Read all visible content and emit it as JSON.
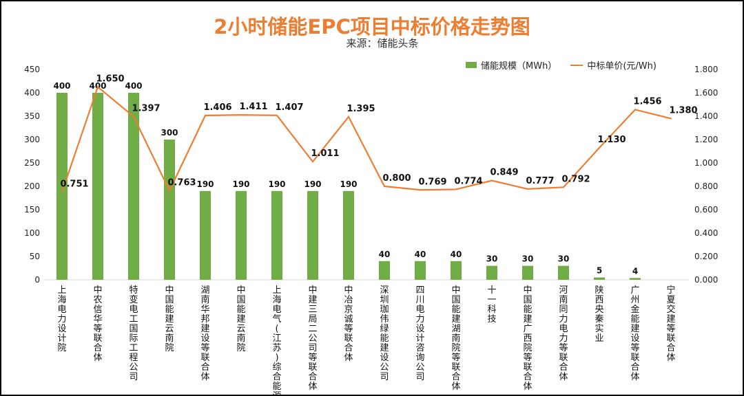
{
  "chart_data": {
    "type": "bar+line",
    "title": "2小时储能EPC项目中标价格走势图",
    "subtitle": "来源：储能头条",
    "categories": [
      "上海电力设计院",
      "中农信华等联合体",
      "特变电工国际工程公司",
      "中国能建云南院",
      "湖南华邦建设等联合体",
      "中国能建云南院",
      "上海电气(江苏)综合能源",
      "中建三局二公司等联合体",
      "中冶京诚等联合体",
      "深圳珈伟绿能建设公司",
      "四川电力设计咨询公司",
      "中国能建湖南院等联合体",
      "十一科技",
      "中国能建广西院等联合体",
      "河南同力电力等联合体",
      "陕西央秦实业",
      "广州金能建设等联合体",
      "宁夏交建等联合体"
    ],
    "series": [
      {
        "name": "储能规模（MWh）",
        "type": "bar",
        "axis": "left",
        "color": "#70AD47",
        "values": [
          400,
          400,
          400,
          300,
          190,
          190,
          190,
          190,
          190,
          40,
          40,
          40,
          30,
          30,
          30,
          5,
          4,
          null
        ]
      },
      {
        "name": "中标单价(元/Wh)",
        "type": "line",
        "axis": "right",
        "color": "#ED7D31",
        "values": [
          0.751,
          1.65,
          1.397,
          0.763,
          1.406,
          1.411,
          1.407,
          1.011,
          1.395,
          0.8,
          0.769,
          0.774,
          0.849,
          0.777,
          0.792,
          1.13,
          1.456,
          1.38
        ]
      }
    ],
    "y_left": {
      "range": [
        0,
        450
      ],
      "ticks": [
        "0",
        "50",
        "100",
        "150",
        "200",
        "250",
        "300",
        "350",
        "400",
        "450"
      ]
    },
    "y_right": {
      "range": [
        0,
        1.8
      ],
      "ticks": [
        "0.000",
        "0.200",
        "0.400",
        "0.600",
        "0.800",
        "1.000",
        "1.200",
        "1.400",
        "1.600",
        "1.800"
      ]
    },
    "grid": false,
    "legend": "top-right"
  }
}
